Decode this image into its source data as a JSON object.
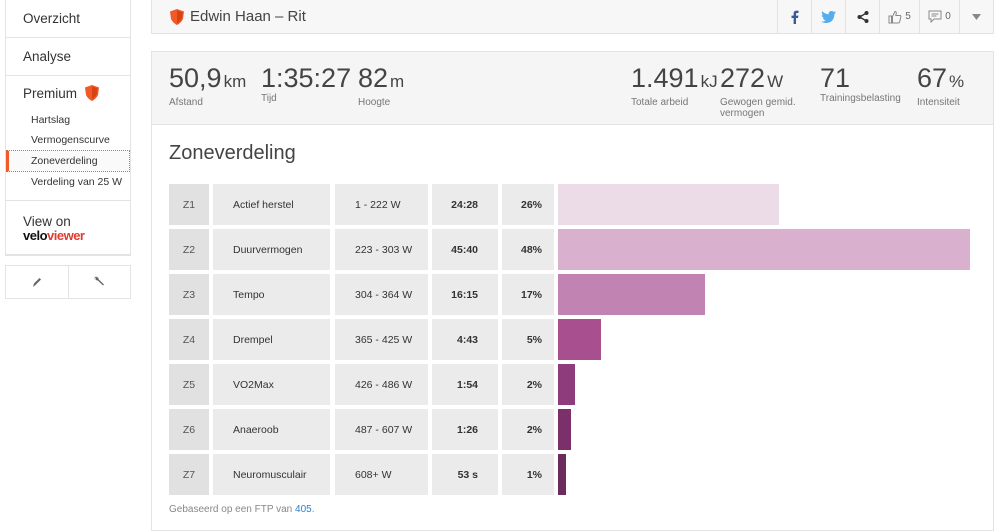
{
  "sidebar": {
    "nav": [
      {
        "label": "Overzicht"
      },
      {
        "label": "Analyse"
      }
    ],
    "premium_label": "Premium",
    "sub_items": [
      {
        "label": "Hartslag"
      },
      {
        "label": "Vermogenscurve"
      },
      {
        "label": "Zoneverdeling"
      },
      {
        "label": "Verdeling van 25 W"
      }
    ],
    "view_on": "View on",
    "veloviewer_part1": "velo",
    "veloviewer_part2": "viewer"
  },
  "header": {
    "title": "Edwin Haan – Rit",
    "kudos_count": "5",
    "comment_count": "0"
  },
  "stats": {
    "distance": {
      "value": "50,9",
      "unit": "km",
      "label": "Afstand"
    },
    "time": {
      "value": "1:35:27",
      "label": "Tijd"
    },
    "elevation": {
      "value": "82",
      "unit": "m",
      "label": "Hoogte"
    },
    "work": {
      "value": "1.491",
      "unit": "kJ",
      "label": "Totale arbeid"
    },
    "weighted_power": {
      "value": "272",
      "unit": "W",
      "label": "Gewogen gemid. vermogen"
    },
    "training_load": {
      "value": "71",
      "label": "Trainingsbelasting"
    },
    "intensity": {
      "value": "67",
      "unit": "%",
      "label": "Intensiteit"
    }
  },
  "panel": {
    "title": "Zoneverdeling",
    "footnote": "Gebaseerd op een FTP van",
    "ftp_value": "405",
    "footnote_end": "."
  },
  "chart_data": {
    "type": "bar",
    "title": "Zoneverdeling",
    "categories": [
      "Z1",
      "Z2",
      "Z3",
      "Z4",
      "Z5",
      "Z6",
      "Z7"
    ],
    "zone_names": [
      "Actief herstel",
      "Duurvermogen",
      "Tempo",
      "Drempel",
      "VO2Max",
      "Anaeroob",
      "Neuromusculair"
    ],
    "ranges": [
      "1 - 222 W",
      "223 - 303 W",
      "304 - 364 W",
      "365 - 425 W",
      "426 - 486 W",
      "487 - 607 W",
      "608+ W"
    ],
    "times": [
      "24:28",
      "45:40",
      "16:15",
      "4:43",
      "1:54",
      "1:26",
      "53 s"
    ],
    "percent_labels": [
      "26%",
      "48%",
      "17%",
      "5%",
      "2%",
      "2%",
      "1%"
    ],
    "seconds": [
      1468,
      2740,
      975,
      283,
      114,
      86,
      53
    ],
    "colors": [
      "#ecdce8",
      "#d9b1cf",
      "#c083b2",
      "#a8508f",
      "#8e3c7c",
      "#7b2f6b",
      "#6a2b5e"
    ]
  }
}
